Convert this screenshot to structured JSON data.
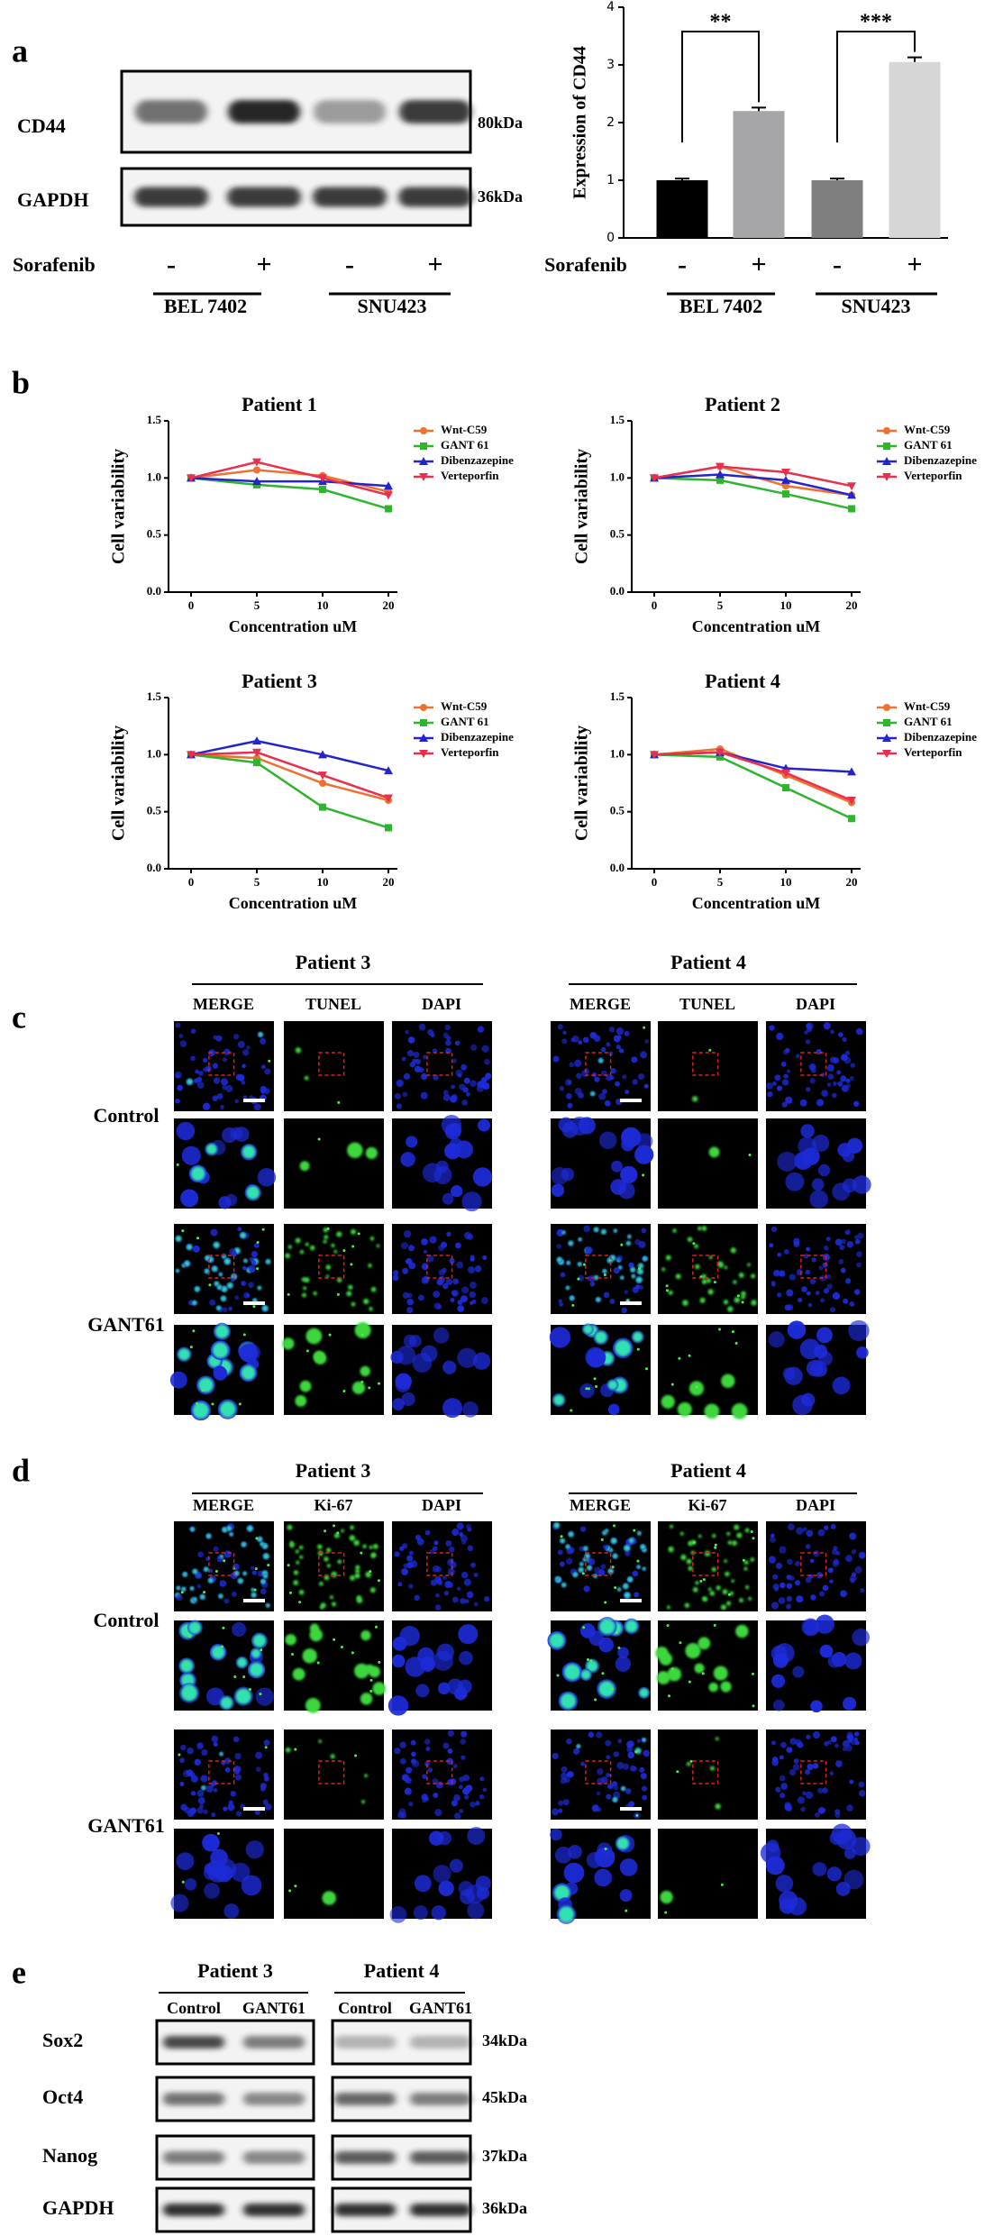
{
  "panel_a": {
    "label": "a",
    "blot": {
      "rows": [
        {
          "name": "CD44",
          "size": "80kDa"
        },
        {
          "name": "GAPDH",
          "size": "36kDa"
        }
      ],
      "treatment": "Sorafenib",
      "signs": [
        "-",
        "+",
        "-",
        "+"
      ],
      "groups": [
        "BEL 7402",
        "SNU423"
      ]
    }
  },
  "panel_b": {
    "label": "b"
  },
  "chart_data": [
    {
      "type": "bar",
      "y_label": "Expression of CD44",
      "treatment": "Sorafenib",
      "categories": [
        "-",
        "+",
        "-",
        "+"
      ],
      "groups": [
        "BEL 7402",
        "SNU423"
      ],
      "values": [
        1.0,
        2.2,
        1.0,
        3.05
      ],
      "errors": [
        0.03,
        0.06,
        0.03,
        0.08
      ],
      "colors": [
        "#000000",
        "#a6a6a8",
        "#7f7f7f",
        "#d6d6d6"
      ],
      "annotations": [
        "**",
        "***"
      ],
      "ylim": [
        0,
        4
      ],
      "yticks": [
        0,
        1,
        2,
        3,
        4
      ]
    },
    {
      "type": "line",
      "title": "Patient 1",
      "x_label": "Concentration uM",
      "y_label": "Cell variability",
      "categories": [
        "0",
        "5",
        "10",
        "20"
      ],
      "ylim": [
        0,
        1.5
      ],
      "yticks": [
        {
          "value": 0,
          "label": "0.0"
        },
        {
          "value": 0.5,
          "label": "0.5"
        },
        {
          "value": 1,
          "label": "1.0"
        },
        {
          "value": 1.5,
          "label": "1.5"
        }
      ],
      "series": [
        {
          "name": "Wnt-C59",
          "color": "#f07030",
          "marker": "circle",
          "values": [
            1.0,
            1.07,
            1.02,
            0.88
          ]
        },
        {
          "name": "GANT 61",
          "color": "#2db52d",
          "marker": "square",
          "values": [
            1.0,
            0.94,
            0.9,
            0.73
          ]
        },
        {
          "name": "Dibenzazepine",
          "color": "#2424cc",
          "marker": "triangle-up",
          "values": [
            1.0,
            0.97,
            0.97,
            0.93
          ]
        },
        {
          "name": "Verteporfin",
          "color": "#e8304e",
          "marker": "triangle-down",
          "values": [
            1.0,
            1.14,
            1.0,
            0.85
          ]
        }
      ]
    },
    {
      "type": "line",
      "title": "Patient 2",
      "x_label": "Concentration uM",
      "y_label": "Cell variability",
      "categories": [
        "0",
        "5",
        "10",
        "20"
      ],
      "ylim": [
        0,
        1.5
      ],
      "yticks": [
        {
          "value": 0,
          "label": "0.0"
        },
        {
          "value": 0.5,
          "label": "0.5"
        },
        {
          "value": 1,
          "label": "1.0"
        },
        {
          "value": 1.5,
          "label": "1.5"
        }
      ],
      "series": [
        {
          "name": "Wnt-C59",
          "color": "#f07030",
          "marker": "circle",
          "values": [
            1.0,
            1.1,
            0.93,
            0.85
          ]
        },
        {
          "name": "GANT 61",
          "color": "#2db52d",
          "marker": "square",
          "values": [
            1.0,
            0.98,
            0.86,
            0.73
          ]
        },
        {
          "name": "Dibenzazepine",
          "color": "#2424cc",
          "marker": "triangle-up",
          "values": [
            1.0,
            1.03,
            0.98,
            0.85
          ]
        },
        {
          "name": "Verteporfin",
          "color": "#e8304e",
          "marker": "triangle-down",
          "values": [
            1.0,
            1.1,
            1.05,
            0.93
          ]
        }
      ]
    },
    {
      "type": "line",
      "title": "Patient 3",
      "x_label": "Concentration uM",
      "y_label": "Cell variability",
      "categories": [
        "0",
        "5",
        "10",
        "20"
      ],
      "ylim": [
        0,
        1.5
      ],
      "yticks": [
        {
          "value": 0,
          "label": "0.0"
        },
        {
          "value": 0.5,
          "label": "0.5"
        },
        {
          "value": 1,
          "label": "1.0"
        },
        {
          "value": 1.5,
          "label": "1.5"
        }
      ],
      "series": [
        {
          "name": "Wnt-C59",
          "color": "#f07030",
          "marker": "circle",
          "values": [
            1.0,
            0.97,
            0.75,
            0.6
          ]
        },
        {
          "name": "GANT 61",
          "color": "#2db52d",
          "marker": "square",
          "values": [
            1.0,
            0.93,
            0.54,
            0.36
          ]
        },
        {
          "name": "Dibenzazepine",
          "color": "#2424cc",
          "marker": "triangle-up",
          "values": [
            1.0,
            1.12,
            1.0,
            0.86
          ]
        },
        {
          "name": "Verteporfin",
          "color": "#e8304e",
          "marker": "triangle-down",
          "values": [
            1.0,
            1.02,
            0.82,
            0.62
          ]
        }
      ]
    },
    {
      "type": "line",
      "title": "Patient 4",
      "x_label": "Concentration uM",
      "y_label": "Cell variability",
      "categories": [
        "0",
        "5",
        "10",
        "20"
      ],
      "ylim": [
        0,
        1.5
      ],
      "yticks": [
        {
          "value": 0,
          "label": "0.0"
        },
        {
          "value": 0.5,
          "label": "0.5"
        },
        {
          "value": 1,
          "label": "1.0"
        },
        {
          "value": 1.5,
          "label": "1.5"
        }
      ],
      "series": [
        {
          "name": "Wnt-C59",
          "color": "#f07030",
          "marker": "circle",
          "values": [
            1.0,
            1.05,
            0.82,
            0.58
          ]
        },
        {
          "name": "GANT 61",
          "color": "#2db52d",
          "marker": "square",
          "values": [
            1.0,
            0.98,
            0.71,
            0.44
          ]
        },
        {
          "name": "Dibenzazepine",
          "color": "#2424cc",
          "marker": "triangle-up",
          "values": [
            1.0,
            1.02,
            0.88,
            0.85
          ]
        },
        {
          "name": "Verteporfin",
          "color": "#e8304e",
          "marker": "triangle-down",
          "values": [
            1.0,
            1.02,
            0.84,
            0.6
          ]
        }
      ]
    }
  ],
  "panel_c": {
    "label": "c",
    "patients": [
      {
        "title": "Patient 3",
        "columns": [
          "MERGE",
          "TUNEL",
          "DAPI"
        ]
      },
      {
        "title": "Patient 4",
        "columns": [
          "MERGE",
          "TUNEL",
          "DAPI"
        ]
      }
    ],
    "rows": [
      "Control",
      "GANT61"
    ]
  },
  "panel_d": {
    "label": "d",
    "patients": [
      {
        "title": "Patient 3",
        "columns": [
          "MERGE",
          "Ki-67",
          "DAPI"
        ]
      },
      {
        "title": "Patient 4",
        "columns": [
          "MERGE",
          "Ki-67",
          "DAPI"
        ]
      }
    ],
    "rows": [
      "Control",
      "GANT61"
    ]
  },
  "panel_e": {
    "label": "e",
    "patients": [
      {
        "title": "Patient 3",
        "lanes": [
          "Control",
          "GANT61"
        ]
      },
      {
        "title": "Patient 4",
        "lanes": [
          "Control",
          "GANT61"
        ]
      }
    ],
    "rows": [
      {
        "name": "Sox2",
        "size": "34kDa"
      },
      {
        "name": "Oct4",
        "size": "45kDa"
      },
      {
        "name": "Nanog",
        "size": "37kDa"
      },
      {
        "name": "GAPDH",
        "size": "36kDa"
      }
    ]
  }
}
